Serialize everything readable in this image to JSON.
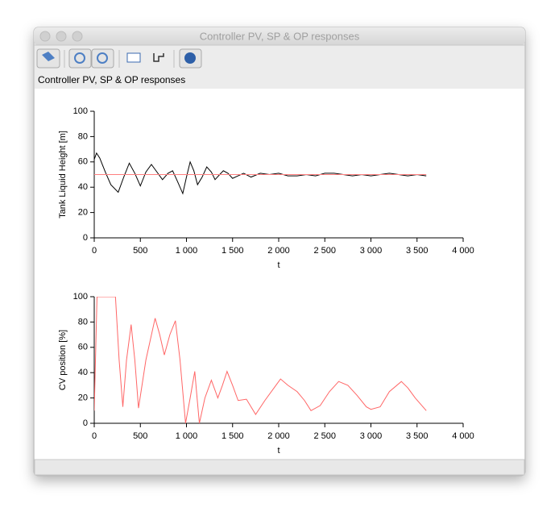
{
  "window": {
    "title": "Controller PV, SP & OP responses",
    "subtitle": "Controller PV, SP & OP responses"
  },
  "chart_data": [
    {
      "type": "line",
      "xlabel": "t",
      "ylabel": "Tank Liquid Height [m]",
      "x": [
        0,
        25,
        60,
        120,
        180,
        260,
        320,
        380,
        440,
        500,
        560,
        620,
        680,
        740,
        800,
        850,
        900,
        960,
        1000,
        1040,
        1080,
        1120,
        1170,
        1220,
        1270,
        1310,
        1360,
        1400,
        1450,
        1500,
        1560,
        1620,
        1700,
        1800,
        1900,
        2000,
        2100,
        2200,
        2300,
        2400,
        2500,
        2600,
        2700,
        2800,
        2900,
        3000,
        3100,
        3200,
        3300,
        3400,
        3500,
        3600
      ],
      "series": [
        {
          "name": "PV",
          "color": "#000000",
          "values": [
            62,
            67,
            63,
            52,
            42,
            36,
            48,
            59,
            51,
            41,
            52,
            58,
            52,
            46,
            51,
            53,
            45,
            35,
            48,
            60,
            53,
            42,
            48,
            56,
            52,
            46,
            50,
            53,
            51,
            47,
            49,
            51,
            48,
            51,
            50,
            51,
            49,
            49,
            50,
            49,
            51,
            51,
            50,
            49,
            50,
            49,
            50,
            51,
            50,
            49,
            50,
            49
          ]
        },
        {
          "name": "SP",
          "color": "#ff8080",
          "x": [
            0,
            3600
          ],
          "values": [
            50,
            50
          ]
        }
      ],
      "xlim": [
        0,
        4000
      ],
      "ylim": [
        0,
        100
      ],
      "xticks": [
        0,
        500,
        {
          "value": 1000,
          "label": "1 000"
        },
        {
          "value": 1500,
          "label": "1 500"
        },
        {
          "value": 2000,
          "label": "2 000"
        },
        {
          "value": 2500,
          "label": "2 500"
        },
        {
          "value": 3000,
          "label": "3 000"
        },
        {
          "value": 3500,
          "label": "3 500"
        },
        {
          "value": 4000,
          "label": "4 000"
        }
      ],
      "yticks": [
        0,
        20,
        40,
        60,
        80,
        100
      ]
    },
    {
      "type": "line",
      "xlabel": "t",
      "ylabel": "CV position [%]",
      "x": [
        0,
        30,
        230,
        270,
        310,
        350,
        400,
        440,
        480,
        560,
        660,
        710,
        760,
        820,
        880,
        930,
        990,
        1040,
        1090,
        1115,
        1140,
        1200,
        1270,
        1340,
        1390,
        1440,
        1500,
        1560,
        1650,
        1750,
        1850,
        1950,
        2020,
        2100,
        2200,
        2280,
        2350,
        2450,
        2550,
        2650,
        2750,
        2850,
        2950,
        3000,
        3100,
        3200,
        3330,
        3400,
        3480,
        3600
      ],
      "series": [
        {
          "name": "OP",
          "color": "#ff6666",
          "values": [
            10,
            100,
            100,
            50,
            13,
            50,
            78,
            50,
            12,
            50,
            83,
            70,
            54,
            70,
            81,
            50,
            0,
            20,
            41,
            20,
            0,
            20,
            34,
            20,
            30,
            41,
            30,
            18,
            19,
            7,
            18,
            28,
            35,
            30,
            25,
            18,
            10,
            14,
            25,
            33,
            30,
            22,
            13,
            11,
            13,
            25,
            33,
            28,
            20,
            10
          ]
        }
      ],
      "xlim": [
        0,
        4000
      ],
      "ylim": [
        0,
        100
      ],
      "xticks": [
        0,
        500,
        {
          "value": 1000,
          "label": "1 000"
        },
        {
          "value": 1500,
          "label": "1 500"
        },
        {
          "value": 2000,
          "label": "2 000"
        },
        {
          "value": 2500,
          "label": "2 500"
        },
        {
          "value": 3000,
          "label": "3 000"
        },
        {
          "value": 3500,
          "label": "3 500"
        },
        {
          "value": 4000,
          "label": "4 000"
        }
      ],
      "yticks": [
        0,
        20,
        40,
        60,
        80,
        100
      ]
    }
  ]
}
